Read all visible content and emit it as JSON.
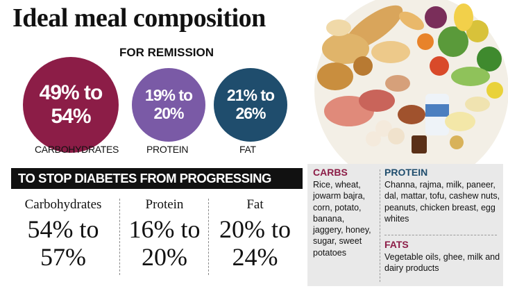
{
  "title": "Ideal meal composition",
  "remission": {
    "heading": "FOR REMISSION",
    "carbs": {
      "line1": "49% to",
      "line2": "54%",
      "label": "CARBOHYDRATES",
      "color": "#8c1d47"
    },
    "protein": {
      "line1": "19% to",
      "line2": "20%",
      "label": "PROTEIN",
      "color": "#7a5aa6"
    },
    "fat": {
      "line1": "21% to",
      "line2": "26%",
      "label": "FAT",
      "color": "#1f4d6d"
    }
  },
  "progressing": {
    "banner": "TO STOP DIABETES FROM PROGRESSING",
    "carbs": {
      "label": "Carbohydrates",
      "line1": "54% to",
      "line2": "57%"
    },
    "protein": {
      "label": "Protein",
      "line1": "16% to",
      "line2": "20%"
    },
    "fat": {
      "label": "Fat",
      "line1": "20% to",
      "line2": "24%"
    }
  },
  "foods": {
    "carbs": {
      "heading": "CARBS",
      "text": "Rice, wheat, jowarm bajra, corn, potato, banana, jaggery, honey, sugar, sweet potatoes"
    },
    "protein": {
      "heading": "PROTEIN",
      "text": "Channa, rajma, milk, paneer, dal, mattar, tofu, cashew nuts, peanuts, chicken breast, egg whites"
    },
    "fats": {
      "heading": "FATS",
      "text": "Vegetable oils, ghee, milk and dairy products"
    },
    "heading_color": "#8c1d47"
  }
}
